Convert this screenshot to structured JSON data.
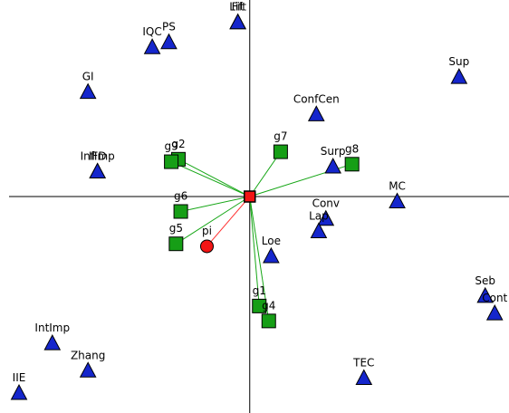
{
  "chart_data": {
    "type": "scatter",
    "title": "",
    "xlabel": "",
    "ylabel": "",
    "xlim": [
      -10.5,
      10.9
    ],
    "ylim": [
      -8.7,
      7.9
    ],
    "grid": false,
    "axes_through_origin": true,
    "colors": {
      "triangle": "#1526cc",
      "square": "#169e16",
      "circle": "#f21515",
      "link_green": "#16a616",
      "link_red": "#ff3030",
      "axis": "#000000"
    },
    "series": [
      {
        "name": "",
        "marker": "triangle",
        "points": [
          {
            "label": "Lift",
            "x": -0.5,
            "y": 7.0
          },
          {
            "label": "Fit",
            "x": -0.5,
            "y": 7.0
          },
          {
            "label": "PS",
            "x": -3.4,
            "y": 6.2
          },
          {
            "label": "IQC",
            "x": -4.1,
            "y": 6.0
          },
          {
            "label": "GI",
            "x": -6.8,
            "y": 4.2
          },
          {
            "label": "Sup",
            "x": 8.8,
            "y": 4.8
          },
          {
            "label": "ConfCen",
            "x": 2.8,
            "y": 3.3
          },
          {
            "label": "InfImp",
            "x": -6.4,
            "y": 1.0
          },
          {
            "label": "IFD",
            "x": -6.4,
            "y": 1.0
          },
          {
            "label": "Surp",
            "x": 3.5,
            "y": 1.2
          },
          {
            "label": "MC",
            "x": 6.2,
            "y": -0.2
          },
          {
            "label": "Conv",
            "x": 3.2,
            "y": -0.9
          },
          {
            "label": "Lap",
            "x": 2.9,
            "y": -1.4
          },
          {
            "label": "Loe",
            "x": 0.9,
            "y": -2.4
          },
          {
            "label": "Seb",
            "x": 9.9,
            "y": -4.0
          },
          {
            "label": "Cont",
            "x": 10.3,
            "y": -4.7
          },
          {
            "label": "IntImp",
            "x": -8.3,
            "y": -5.9
          },
          {
            "label": "Zhang",
            "x": -6.8,
            "y": -7.0
          },
          {
            "label": "TEC",
            "x": 4.8,
            "y": -7.3
          },
          {
            "label": "IIE",
            "x": -9.7,
            "y": -7.9
          }
        ]
      },
      {
        "name": "",
        "marker": "square",
        "linked_to_origin": true,
        "points": [
          {
            "label": "g2",
            "x": -3.0,
            "y": 1.5
          },
          {
            "label": "g9",
            "x": -3.3,
            "y": 1.4
          },
          {
            "label": "g7",
            "x": 1.3,
            "y": 1.8
          },
          {
            "label": "g8",
            "x": 4.3,
            "y": 1.3
          },
          {
            "label": "g6",
            "x": -2.9,
            "y": -0.6
          },
          {
            "label": "g5",
            "x": -3.1,
            "y": -1.9
          },
          {
            "label": "g1",
            "x": 0.4,
            "y": -4.4
          },
          {
            "label": "g4",
            "x": 0.8,
            "y": -5.0
          }
        ]
      },
      {
        "name": "",
        "marker": "circle",
        "linked_to_origin": true,
        "points": [
          {
            "label": "pi",
            "x": -1.8,
            "y": -2.0
          }
        ]
      }
    ],
    "origin_marker": {
      "label": "",
      "x": 0,
      "y": 0
    }
  }
}
